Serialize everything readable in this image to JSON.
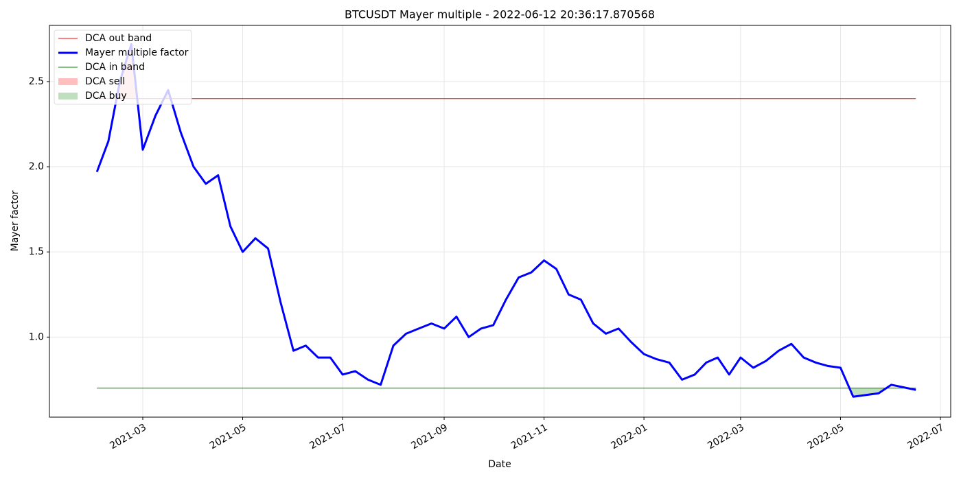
{
  "chart_data": {
    "type": "line",
    "title": "BTCUSDT Mayer multiple - 2022-06-12 20:36:17.870568",
    "x_label": "Date",
    "y_label": "Mayer factor",
    "x": [
      "2021-02",
      "2021-02",
      "2021-02",
      "2021-02",
      "2021-03",
      "2021-03",
      "2021-03",
      "2021-03",
      "2021-04",
      "2021-04",
      "2021-04",
      "2021-04",
      "2021-05",
      "2021-05",
      "2021-05",
      "2021-05",
      "2021-06",
      "2021-06",
      "2021-06",
      "2021-06",
      "2021-07",
      "2021-07",
      "2021-07",
      "2021-07",
      "2021-08",
      "2021-08",
      "2021-08",
      "2021-08",
      "2021-09",
      "2021-09",
      "2021-09",
      "2021-09",
      "2021-10",
      "2021-10",
      "2021-10",
      "2021-10",
      "2021-11",
      "2021-11",
      "2021-11",
      "2021-11",
      "2021-12",
      "2021-12",
      "2021-12",
      "2021-12",
      "2022-01",
      "2022-01",
      "2022-01",
      "2022-01",
      "2022-02",
      "2022-02",
      "2022-02",
      "2022-02",
      "2022-03",
      "2022-03",
      "2022-03",
      "2022-03",
      "2022-04",
      "2022-04",
      "2022-04",
      "2022-04",
      "2022-05",
      "2022-05",
      "2022-05",
      "2022-05",
      "2022-06",
      "2022-06"
    ],
    "series": [
      {
        "name": "Mayer multiple factor",
        "color": "#0000ff",
        "values": [
          1.97,
          2.15,
          2.5,
          2.72,
          2.1,
          2.3,
          2.45,
          2.2,
          2.0,
          1.9,
          1.95,
          1.65,
          1.5,
          1.58,
          1.52,
          1.2,
          0.92,
          0.95,
          0.88,
          0.88,
          0.78,
          0.8,
          0.75,
          0.72,
          0.95,
          1.02,
          1.05,
          1.08,
          1.05,
          1.12,
          1.0,
          1.05,
          1.07,
          1.22,
          1.35,
          1.38,
          1.45,
          1.4,
          1.25,
          1.22,
          1.08,
          1.02,
          1.05,
          0.97,
          0.9,
          0.87,
          0.85,
          0.75,
          0.78,
          0.85,
          0.88,
          0.78,
          0.88,
          0.82,
          0.86,
          0.92,
          0.96,
          0.88,
          0.85,
          0.83,
          0.82,
          0.65,
          0.66,
          0.67,
          0.72,
          0.69
        ]
      }
    ],
    "bands": [
      {
        "name": "DCA out band",
        "color": "#ff0000",
        "value": 2.4
      },
      {
        "name": "DCA in band",
        "color": "#008000",
        "value": 0.7
      }
    ],
    "fills": [
      {
        "name": "DCA sell",
        "color": "#ffbfbf"
      },
      {
        "name": "DCA buy",
        "color": "#bfdfbf"
      }
    ],
    "ylim": [
      0.53,
      2.83
    ],
    "yticks": [
      {
        "value": 1,
        "label": "1.0"
      },
      1.5,
      {
        "value": 2,
        "label": "2.0"
      },
      2.5
    ],
    "xticks": [
      "2021-03",
      "2021-05",
      "2021-07",
      "2021-09",
      "2021-11",
      "2022-01",
      "2022-03",
      "2022-05",
      "2022-07"
    ],
    "grid": true,
    "legend": "upper left"
  }
}
